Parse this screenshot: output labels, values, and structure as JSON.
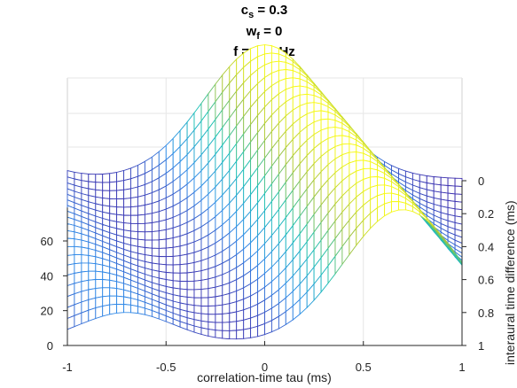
{
  "title": {
    "line1": {
      "symbol": "c",
      "subscript": "s",
      "value": " = 0.3"
    },
    "line2": {
      "symbol": "w",
      "subscript": "f",
      "value": " = 0"
    },
    "line3": "f = 500 Hz"
  },
  "chart_data": {
    "type": "surface",
    "xlabel": "correlation-time tau (ms)",
    "ylabel": "interaural time difference (ms)",
    "xlim": [
      -1,
      1
    ],
    "ylim": [
      0,
      1
    ],
    "zlim": [
      0,
      80
    ],
    "x_ticks": [
      "-1",
      "-0.5",
      "0",
      "0.5",
      "1"
    ],
    "y_ticks": [
      "0",
      "0.2",
      "0.4",
      "0.6",
      "0.8",
      "1"
    ],
    "z_ticks": [
      "0",
      "20",
      "40",
      "60"
    ],
    "grid": true,
    "colormap": [
      "#3e26a8",
      "#2e8ce9",
      "#19c0b6",
      "#a8c53a",
      "#f9fb15"
    ],
    "mesh": {
      "x_samples": 57,
      "y_samples": 21,
      "baseline": 1,
      "peak_amplitude": 77,
      "peak_width_ms": 0.3,
      "peak_center_per_itd_ms": 0.7,
      "sidelobe_period_ms": 2,
      "sidelobe_amplitude": 18,
      "sidelobe_width_ms": 0.12,
      "sidelobe_offset_ms": 0.7,
      "plateau_level": 47,
      "plateau_blend_width_ms": 0.14
    }
  }
}
